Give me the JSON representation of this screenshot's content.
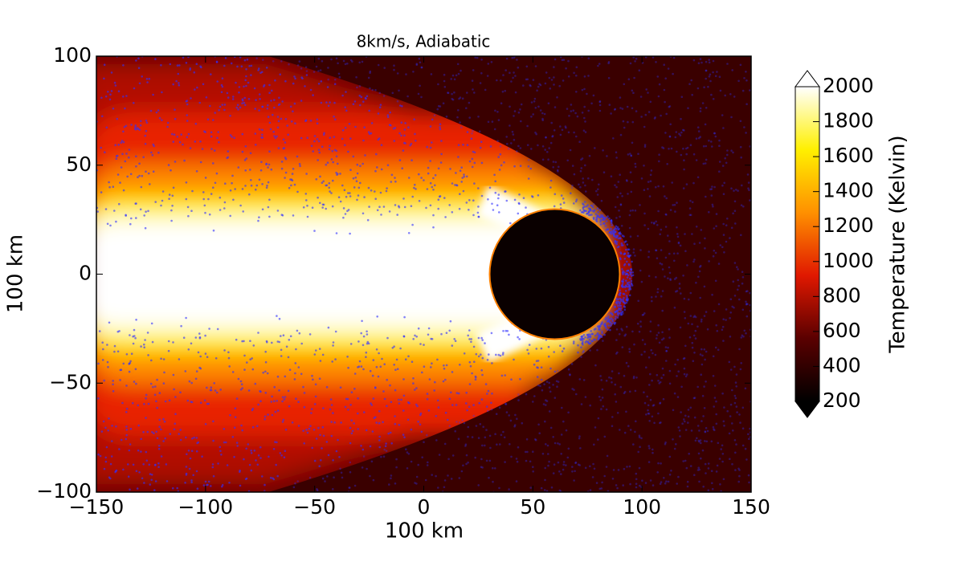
{
  "chart_data": {
    "type": "heatmap",
    "title": "8km/s, Adiabatic",
    "xlabel": "100 km",
    "ylabel": "100 km",
    "xlim": [
      -150,
      150
    ],
    "xticks": [
      {
        "value": -150,
        "label": "−150"
      },
      {
        "value": -100,
        "label": "−100"
      },
      {
        "value": -50,
        "label": "−50"
      },
      0,
      50,
      100,
      150
    ],
    "ylim": [
      -100,
      100
    ],
    "yticks": [
      {
        "value": -100,
        "label": "−100"
      },
      {
        "value": -50,
        "label": "−50"
      },
      0,
      50,
      100
    ],
    "colorbar": {
      "label": "Temperature (Kelvin)",
      "lim": [
        200,
        2000
      ],
      "ticks": [
        200,
        400,
        600,
        800,
        1000,
        1200,
        1400,
        1600,
        1800,
        2000
      ]
    }
  }
}
